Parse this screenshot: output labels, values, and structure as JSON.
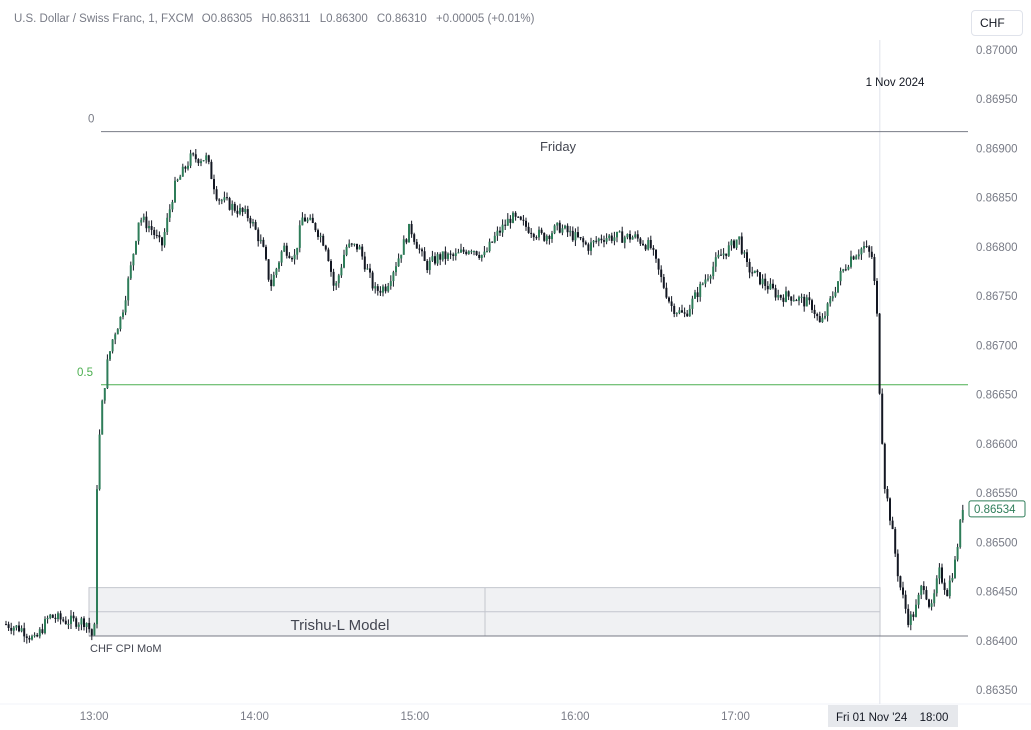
{
  "legend": {
    "symbol": "U.S. Dollar / Swiss Franc, 1, FXCM",
    "o_label": "O",
    "o": "0.86305",
    "h_label": "H",
    "h": "0.86311",
    "l_label": "L",
    "l": "0.86300",
    "c_label": "C",
    "c": "0.86310",
    "change": "+0.00005 (+0.01%)"
  },
  "currency_button": "CHF",
  "chart_data": {
    "type": "candlestick",
    "y_ticks": [
      "0.87000",
      "0.86950",
      "0.86900",
      "0.86850",
      "0.86800",
      "0.86750",
      "0.86700",
      "0.86650",
      "0.86600",
      "0.86550",
      "0.86500",
      "0.86450",
      "0.86400",
      "0.86350"
    ],
    "y_range": [
      0.8634,
      0.8701
    ],
    "x_ticks": [
      "13:00",
      "14:00",
      "15:00",
      "16:00",
      "17:00",
      "18:00"
    ],
    "x_range_hours": [
      "12:27",
      "18:27"
    ],
    "crosshair_date_label": "Fri 01 Nov '24",
    "current_price_label": "0.86534",
    "current_price": 0.86534,
    "session_label": "Friday",
    "session_date": "1 Nov 2024",
    "fib_levels": [
      {
        "label": "0",
        "price": 0.86917,
        "color": "#787b86"
      },
      {
        "label": "0.5",
        "price": 0.8666,
        "color": "#4caf50"
      }
    ],
    "event_label": "CHF CPI MoM",
    "rect_label": "Trishu-L Model",
    "rect_top": 0.8645,
    "rect_bottom": 0.86405,
    "price_path": [
      [
        12.45,
        0.86417
      ],
      [
        12.55,
        0.86412
      ],
      [
        12.63,
        0.864
      ],
      [
        12.72,
        0.86425
      ],
      [
        12.83,
        0.8642
      ],
      [
        12.95,
        0.8642
      ],
      [
        13.0,
        0.864
      ],
      [
        13.02,
        0.8658
      ],
      [
        13.05,
        0.8664
      ],
      [
        13.08,
        0.8668
      ],
      [
        13.12,
        0.8671
      ],
      [
        13.17,
        0.8673
      ],
      [
        13.23,
        0.8678
      ],
      [
        13.28,
        0.8683
      ],
      [
        13.35,
        0.8682
      ],
      [
        13.42,
        0.868
      ],
      [
        13.5,
        0.8686
      ],
      [
        13.6,
        0.8689
      ],
      [
        13.7,
        0.8689
      ],
      [
        13.77,
        0.8685
      ],
      [
        13.87,
        0.8684
      ],
      [
        13.97,
        0.8683
      ],
      [
        14.05,
        0.868
      ],
      [
        14.1,
        0.8676
      ],
      [
        14.18,
        0.868
      ],
      [
        14.25,
        0.8679
      ],
      [
        14.3,
        0.8683
      ],
      [
        14.38,
        0.8682
      ],
      [
        14.45,
        0.868
      ],
      [
        14.5,
        0.86755
      ],
      [
        14.57,
        0.868
      ],
      [
        14.65,
        0.868
      ],
      [
        14.75,
        0.86755
      ],
      [
        14.82,
        0.8676
      ],
      [
        14.9,
        0.8679
      ],
      [
        14.97,
        0.8682
      ],
      [
        15.07,
        0.8678
      ],
      [
        15.15,
        0.8679
      ],
      [
        15.25,
        0.8679
      ],
      [
        15.35,
        0.868
      ],
      [
        15.43,
        0.8679
      ],
      [
        15.5,
        0.8681
      ],
      [
        15.6,
        0.8683
      ],
      [
        15.7,
        0.8682
      ],
      [
        15.8,
        0.8681
      ],
      [
        15.9,
        0.8682
      ],
      [
        16.0,
        0.8681
      ],
      [
        16.08,
        0.868
      ],
      [
        16.17,
        0.8681
      ],
      [
        16.27,
        0.8681
      ],
      [
        16.37,
        0.8681
      ],
      [
        16.47,
        0.868
      ],
      [
        16.53,
        0.8677
      ],
      [
        16.6,
        0.8674
      ],
      [
        16.68,
        0.8673
      ],
      [
        16.75,
        0.8675
      ],
      [
        16.82,
        0.8677
      ],
      [
        16.9,
        0.8679
      ],
      [
        16.97,
        0.868
      ],
      [
        17.02,
        0.8681
      ],
      [
        17.07,
        0.8678
      ],
      [
        17.13,
        0.8677
      ],
      [
        17.2,
        0.8676
      ],
      [
        17.27,
        0.8675
      ],
      [
        17.35,
        0.8675
      ],
      [
        17.42,
        0.86745
      ],
      [
        17.48,
        0.8674
      ],
      [
        17.53,
        0.8672
      ],
      [
        17.58,
        0.8674
      ],
      [
        17.65,
        0.8677
      ],
      [
        17.72,
        0.8679
      ],
      [
        17.8,
        0.868
      ],
      [
        17.85,
        0.8679
      ],
      [
        17.88,
        0.8674
      ],
      [
        17.9,
        0.8665
      ],
      [
        17.93,
        0.8656
      ],
      [
        17.97,
        0.8652
      ],
      [
        18.02,
        0.8646
      ],
      [
        18.08,
        0.8642
      ],
      [
        18.12,
        0.8643
      ],
      [
        18.17,
        0.8646
      ],
      [
        18.22,
        0.8643
      ],
      [
        18.27,
        0.8647
      ],
      [
        18.32,
        0.8645
      ],
      [
        18.37,
        0.8648
      ],
      [
        18.42,
        0.8654
      ]
    ]
  }
}
